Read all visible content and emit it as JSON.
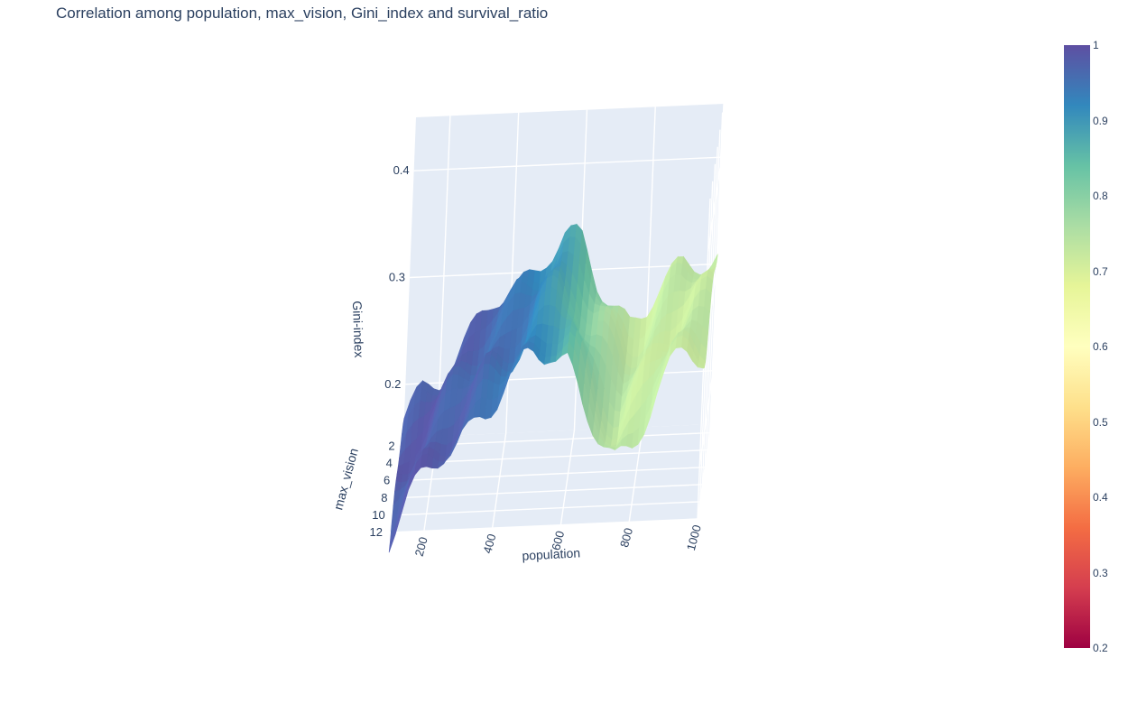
{
  "chart_data": {
    "type": "surface",
    "title": "Correlation among population, max_vision, Gini_index and survival_ratio",
    "x_axis": {
      "label": "population",
      "ticks": [
        200,
        400,
        600,
        800,
        1000
      ],
      "range": [
        100,
        1000
      ]
    },
    "y_axis": {
      "label": "max_vision",
      "ticks": [
        2,
        4,
        6,
        8,
        10,
        12
      ],
      "range": [
        1,
        12
      ]
    },
    "z_axis": {
      "label": "Gini-index",
      "ticks": [
        0.2,
        0.3,
        0.4
      ],
      "range": [
        0.15,
        0.45
      ]
    },
    "surface_color": {
      "label": "survival_ratio",
      "colorscale": "Spectral",
      "cmin": 0.2,
      "cmax": 1,
      "ticks": [
        0.2,
        0.3,
        0.4,
        0.5,
        0.6,
        0.7,
        0.8,
        0.9,
        1
      ]
    },
    "profile": {
      "population": [
        100,
        150,
        200,
        250,
        300,
        350,
        400,
        450,
        500,
        550,
        600,
        650,
        700,
        750,
        800,
        850,
        900,
        950,
        1000
      ],
      "gini_index": [
        0.16,
        0.19,
        0.21,
        0.23,
        0.25,
        0.27,
        0.28,
        0.3,
        0.32,
        0.33,
        0.32,
        0.29,
        0.27,
        0.25,
        0.26,
        0.28,
        0.3,
        0.31,
        0.31
      ],
      "survival_ratio": [
        0.98,
        0.98,
        0.98,
        0.97,
        0.97,
        0.96,
        0.95,
        0.94,
        0.92,
        0.89,
        0.85,
        0.8,
        0.76,
        0.74,
        0.73,
        0.73,
        0.73,
        0.73,
        0.73
      ]
    },
    "grid": true,
    "legend": "colorbar-right"
  }
}
